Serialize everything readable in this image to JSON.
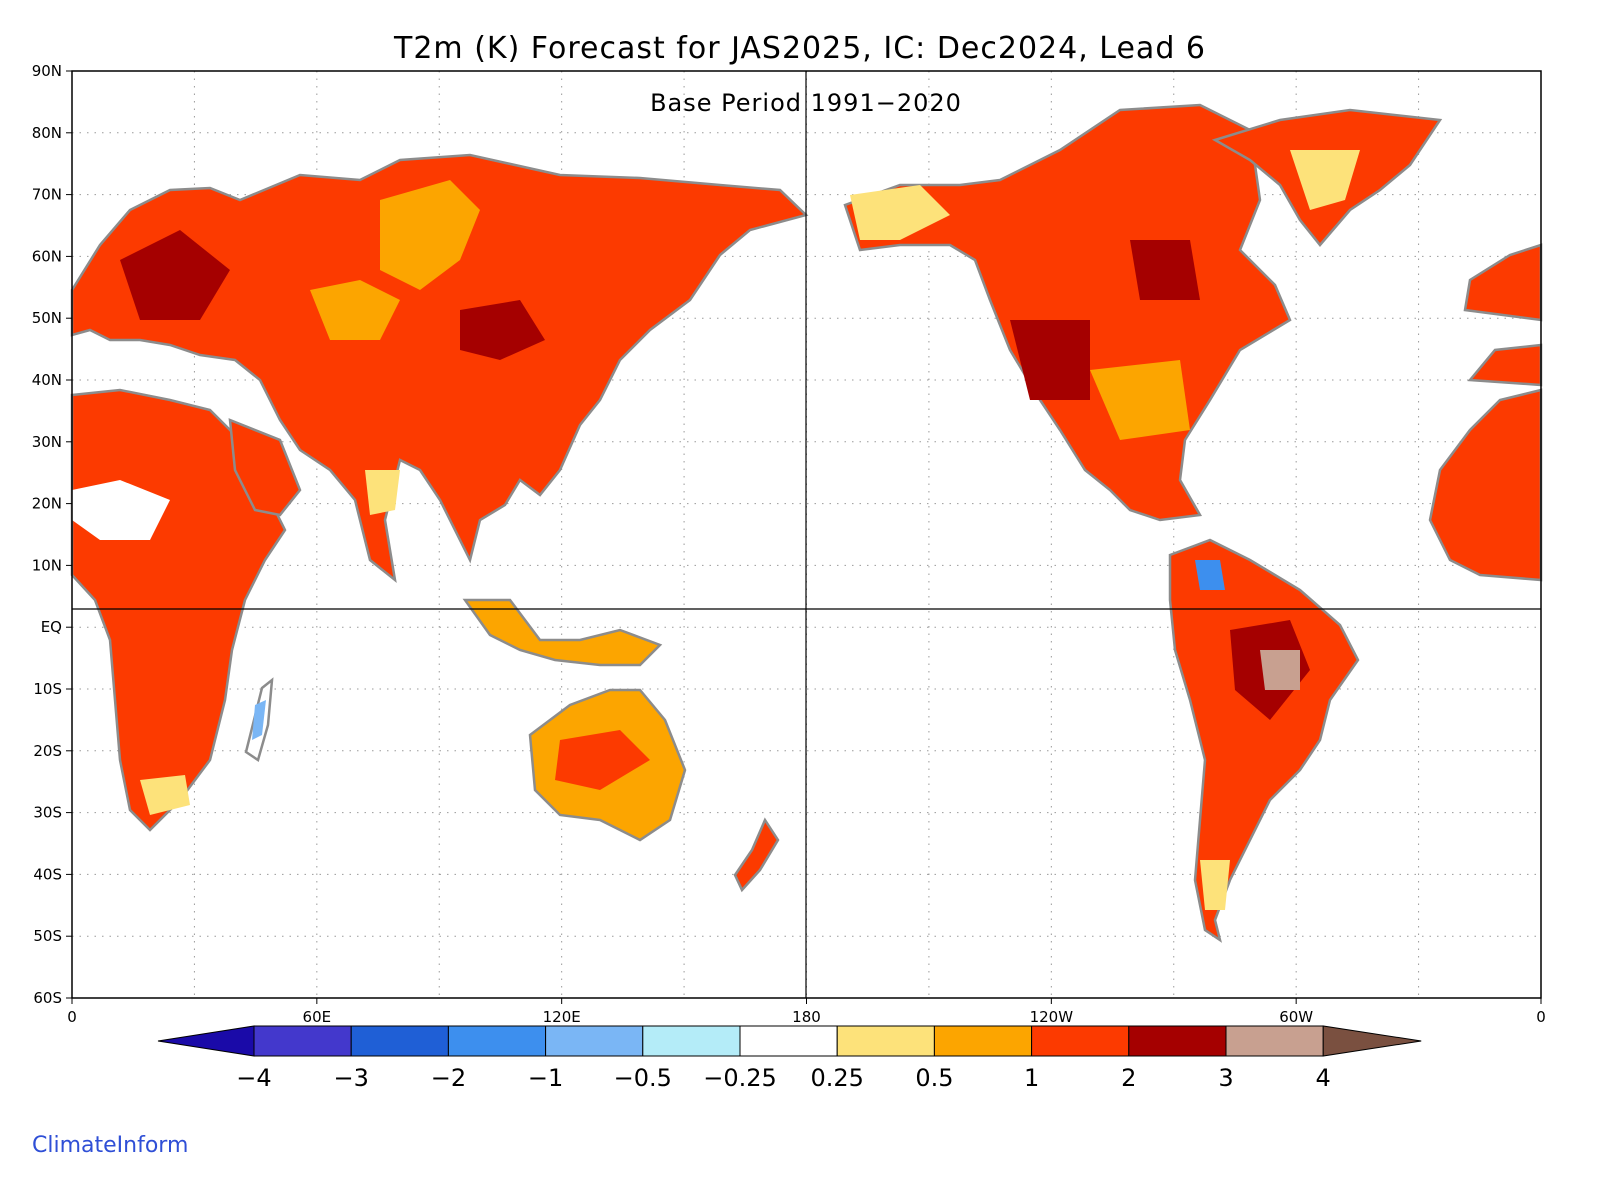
{
  "map": {
    "title": "T2m (K) Forecast for JAS2025, IC: Dec2024, Lead 6",
    "subtitle": "Base Period 1991−2020",
    "lat_labels": [
      "90N",
      "80N",
      "70N",
      "60N",
      "50N",
      "40N",
      "30N",
      "20N",
      "10N",
      "EQ",
      "10S",
      "20S",
      "30S",
      "40S",
      "50S",
      "60S"
    ],
    "lon_labels": [
      "0",
      "60E",
      "120E",
      "180",
      "120W",
      "60W",
      "0"
    ],
    "extent": {
      "lon_min": 0,
      "lon_max": 360,
      "lat_min": -60,
      "lat_max": 90
    },
    "colorbar": {
      "labels": [
        "−4",
        "−3",
        "−2",
        "−1",
        "−0.5",
        "−0.25",
        "0.25",
        "0.5",
        "1",
        "2",
        "3",
        "4"
      ],
      "colors": [
        "#1a0aa8",
        "#4338cc",
        "#1f5fd6",
        "#3d8fee",
        "#7ab6f5",
        "#b4ecf8",
        "#ffffff",
        "#fde27a",
        "#fca500",
        "#fc3a00",
        "#a50000",
        "#c8a090",
        "#7a5040"
      ]
    },
    "credit": "ClimateInform"
  }
}
